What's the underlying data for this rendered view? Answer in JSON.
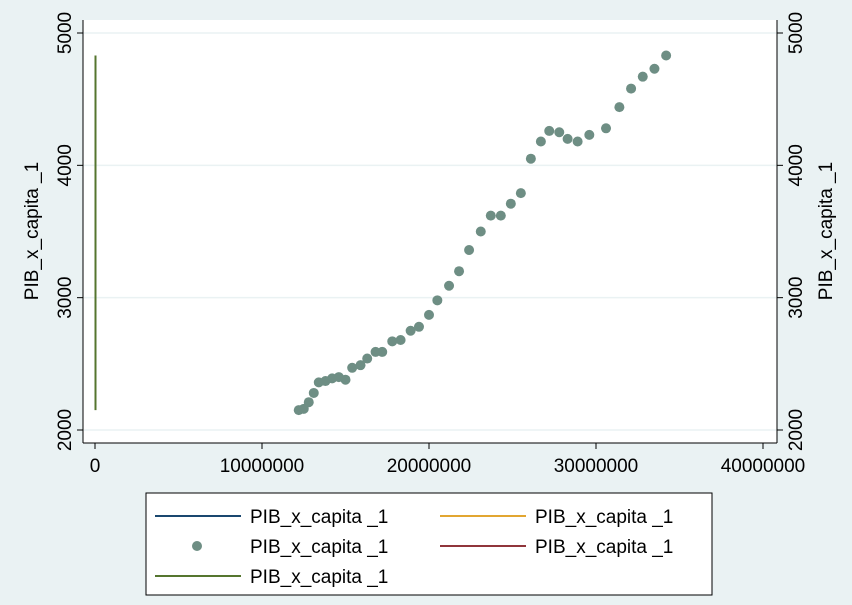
{
  "chart_data": {
    "type": "scatter",
    "ylabel_left": "PIB_x_capita _1",
    "ylabel_right": "PIB_x_capita _1",
    "xlim": [
      0,
      40000000
    ],
    "ylim": [
      2000,
      5000
    ],
    "xticks": [
      "0",
      "10000000",
      "20000000",
      "30000000",
      "40000000"
    ],
    "xtick_values": [
      0,
      10000000,
      20000000,
      30000000,
      40000000
    ],
    "yticks": [
      "2000",
      "3000",
      "4000",
      "5000"
    ],
    "ytick_values": [
      2000,
      3000,
      4000,
      5000
    ],
    "grid": true,
    "legend_position": "bottom",
    "series": [
      {
        "name": "PIB_x_capita _1",
        "kind": "line",
        "color": "#1a476f",
        "points": []
      },
      {
        "name": "PIB_x_capita _1",
        "kind": "line",
        "color": "#e2a631",
        "points": []
      },
      {
        "name": "PIB_x_capita _1",
        "kind": "scatter",
        "color": "#6e8e84",
        "points": [
          [
            12200000,
            2150
          ],
          [
            12500000,
            2160
          ],
          [
            12800000,
            2210
          ],
          [
            13100000,
            2280
          ],
          [
            13400000,
            2360
          ],
          [
            13800000,
            2370
          ],
          [
            14200000,
            2390
          ],
          [
            14600000,
            2400
          ],
          [
            15000000,
            2380
          ],
          [
            15400000,
            2470
          ],
          [
            15900000,
            2490
          ],
          [
            16300000,
            2540
          ],
          [
            16800000,
            2590
          ],
          [
            17200000,
            2590
          ],
          [
            17800000,
            2670
          ],
          [
            18300000,
            2680
          ],
          [
            18900000,
            2750
          ],
          [
            19400000,
            2780
          ],
          [
            20000000,
            2870
          ],
          [
            20500000,
            2980
          ],
          [
            21200000,
            3090
          ],
          [
            21800000,
            3200
          ],
          [
            22400000,
            3360
          ],
          [
            23100000,
            3500
          ],
          [
            23700000,
            3620
          ],
          [
            24300000,
            3620
          ],
          [
            24900000,
            3710
          ],
          [
            25500000,
            3790
          ],
          [
            26100000,
            4050
          ],
          [
            26700000,
            4180
          ],
          [
            27200000,
            4260
          ],
          [
            27800000,
            4250
          ],
          [
            28300000,
            4200
          ],
          [
            28900000,
            4180
          ],
          [
            29600000,
            4230
          ],
          [
            30600000,
            4280
          ],
          [
            31400000,
            4440
          ],
          [
            32100000,
            4580
          ],
          [
            32800000,
            4670
          ],
          [
            33500000,
            4730
          ],
          [
            34200000,
            4830
          ]
        ]
      },
      {
        "name": "PIB_x_capita _1",
        "kind": "line",
        "color": "#90353b",
        "points": []
      },
      {
        "name": "PIB_x_capita _1",
        "kind": "line",
        "color": "#55752f",
        "points": [
          [
            30000,
            2150
          ],
          [
            30000,
            4830
          ]
        ]
      }
    ]
  }
}
